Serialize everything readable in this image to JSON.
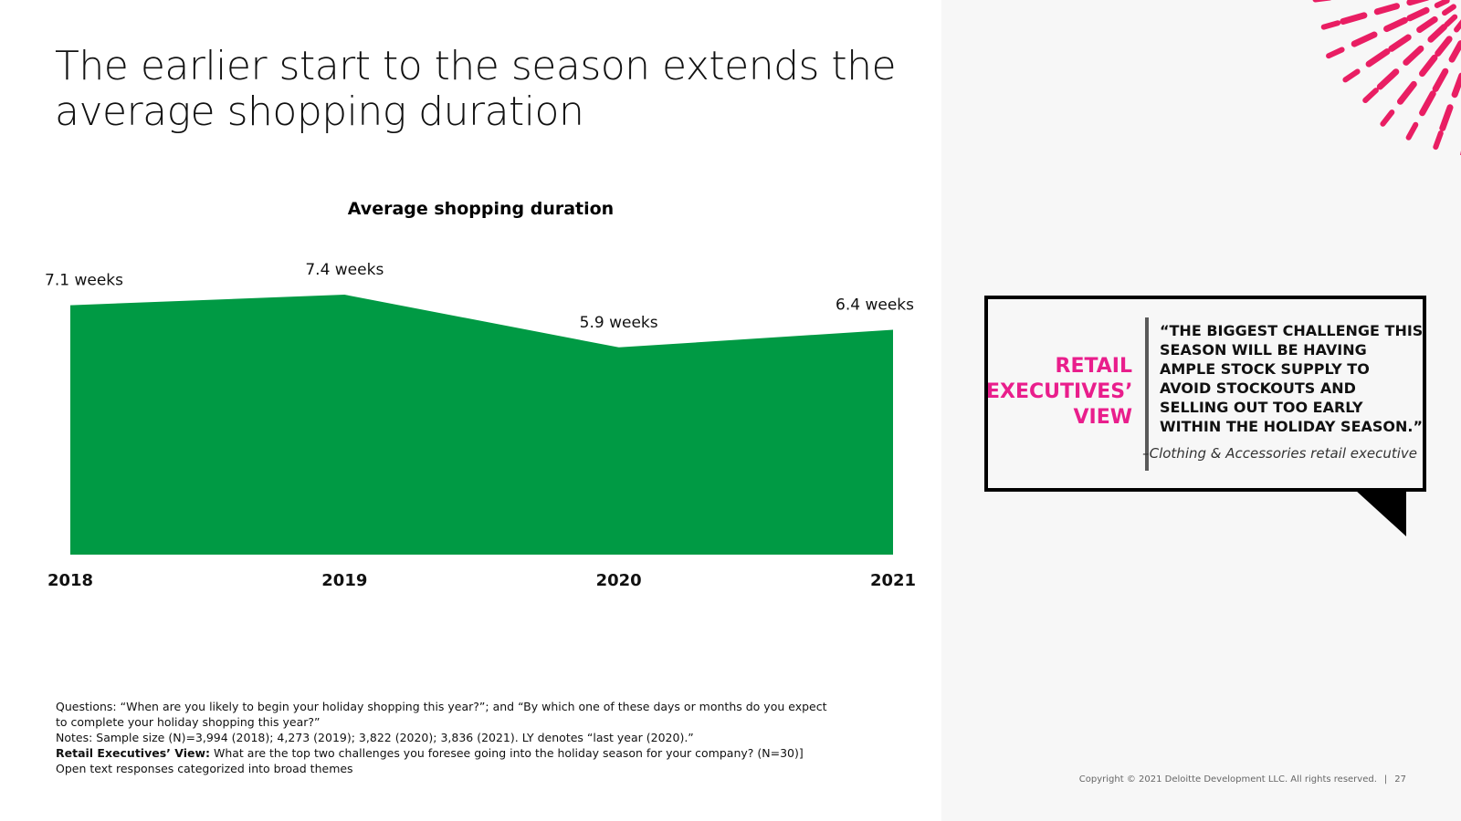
{
  "title": "The earlier start to the season extends the average shopping duration",
  "chart_data": {
    "type": "area",
    "title": "Average shopping duration",
    "categories": [
      "2018",
      "2019",
      "2020",
      "2021"
    ],
    "values": [
      7.1,
      7.4,
      5.9,
      6.4
    ],
    "labels": [
      "7.1 weeks",
      "7.4 weeks",
      "5.9 weeks",
      "6.4 weeks"
    ],
    "unit": "weeks",
    "color": "#009a44",
    "ylim": [
      0,
      7.4
    ],
    "xlabel": "",
    "ylabel": "",
    "grid": false,
    "legend": "none"
  },
  "sidebar": {
    "label_line1": "RETAIL",
    "label_line2": "EXECUTIVES’",
    "label_line3": "VIEW",
    "label_color": "#e91e8c",
    "quote": "“THE BIGGEST CHALLENGE THIS SEASON WILL BE HAVING AMPLE STOCK SUPPLY TO AVOID STOCKOUTS AND SELLING OUT TOO EARLY WITHIN THE HOLIDAY SEASON.”",
    "attribution": "–Clothing & Accessories retail executive"
  },
  "footnotes": {
    "questions": "Questions: “When are you likely to begin your holiday shopping this year?”; and “By which one of these days or months do you expect to complete your holiday shopping this year?”",
    "notes": "Notes: Sample size (N)=3,994 (2018); 4,273 (2019); 3,822 (2020); 3,836 (2021). LY denotes “last year (2020).”",
    "retail_label": "Retail Executives’ View:",
    "retail_text": " What are the top two challenges you foresee going into the holiday season for your company? (N=30)] Open text responses categorized into broad themes"
  },
  "footer": {
    "copyright": "Copyright © 2021 Deloitte Development LLC. All rights reserved.",
    "separator": "|",
    "page_number": "27"
  },
  "decor": {
    "sunburst_icon": "sunburst-icon",
    "sunburst_color": "#e91e63"
  }
}
